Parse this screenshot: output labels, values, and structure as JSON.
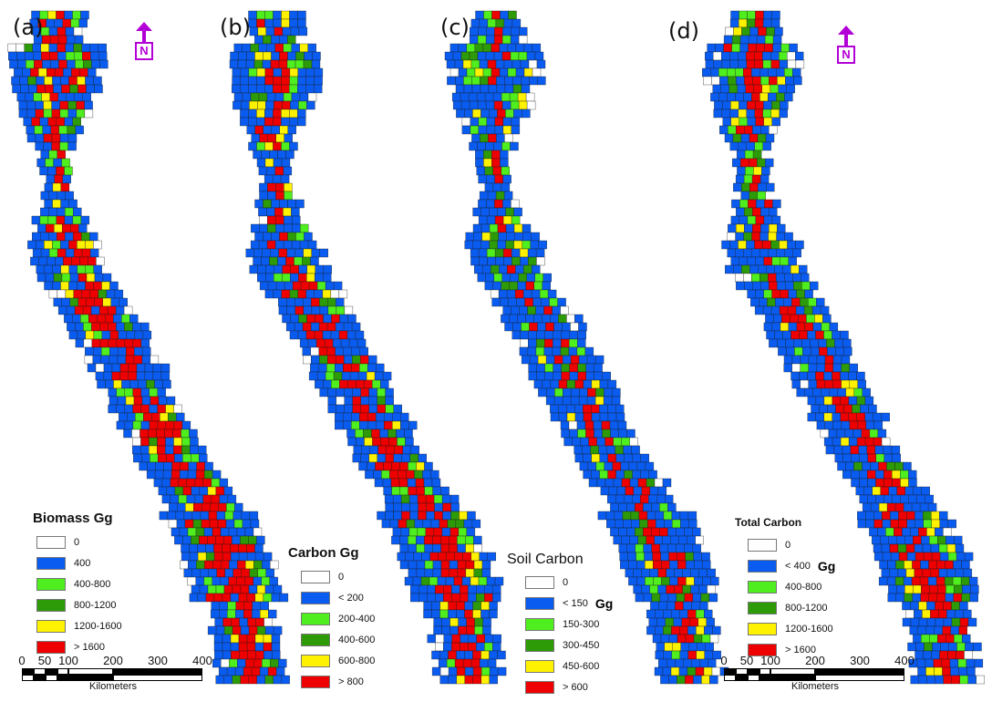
{
  "colors": {
    "zero": "#ffffff",
    "class1": "#0a5cf0",
    "class2": "#4fee1e",
    "class3": "#2d9b08",
    "class4": "#fff200",
    "class5": "#ee0000",
    "north_arrow": "#b200d6",
    "grid_line": "#1a1a1a"
  },
  "north_label": "N",
  "panels": [
    {
      "label": "(a)",
      "legend_title": "Biomass Gg",
      "unit": "",
      "classes": [
        "0",
        "400",
        "400-800",
        "800-1200",
        "1200-1600",
        "> 1600"
      ]
    },
    {
      "label": "(b)",
      "legend_title": "Carbon Gg",
      "unit": "",
      "classes": [
        "0",
        "< 200",
        "200-400",
        "400-600",
        "600-800",
        "> 800"
      ]
    },
    {
      "label": "(c)",
      "legend_title": "Soil Carbon",
      "unit": "Gg",
      "classes": [
        "0",
        "< 150",
        "150-300",
        "300-450",
        "450-600",
        "> 600"
      ]
    },
    {
      "label": "(d)",
      "legend_title": "Total Carbon",
      "unit": "Gg",
      "classes": [
        "0",
        "< 400",
        "400-800",
        "800-1200",
        "1200-1600",
        "> 1600"
      ]
    }
  ],
  "scale_bar": {
    "ticks": [
      "0",
      "50",
      "100",
      "200",
      "300",
      "400"
    ],
    "unit_label": "Kilometers"
  }
}
